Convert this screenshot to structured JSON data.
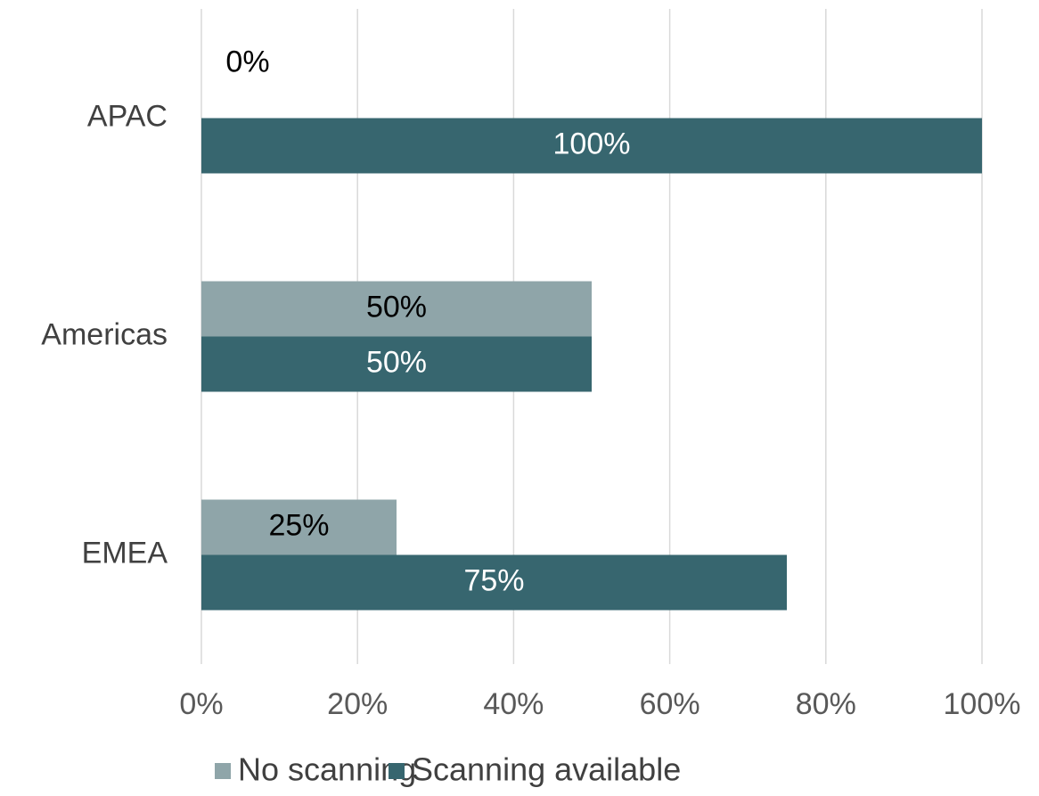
{
  "chart_data": {
    "type": "bar",
    "orientation": "horizontal",
    "categories": [
      "APAC",
      "Americas",
      "EMEA"
    ],
    "series": [
      {
        "name": "No scanning",
        "color": "#8fa5a9",
        "values": [
          0,
          50,
          25
        ],
        "value_labels": [
          "0%",
          "50%",
          "25%"
        ],
        "label_color": "#000000"
      },
      {
        "name": "Scanning available",
        "color": "#37666f",
        "values": [
          100,
          50,
          75
        ],
        "value_labels": [
          "100%",
          "50%",
          "75%"
        ],
        "label_color": "#ffffff"
      }
    ],
    "xlim": [
      0,
      100
    ],
    "xticks": [
      {
        "value": 0,
        "label": "0%"
      },
      {
        "value": 20,
        "label": "20%"
      },
      {
        "value": 40,
        "label": "40%"
      },
      {
        "value": 60,
        "label": "60%"
      },
      {
        "value": 80,
        "label": "80%"
      },
      {
        "value": 100,
        "label": "100%"
      }
    ],
    "grid": true,
    "legend": "bottom"
  }
}
